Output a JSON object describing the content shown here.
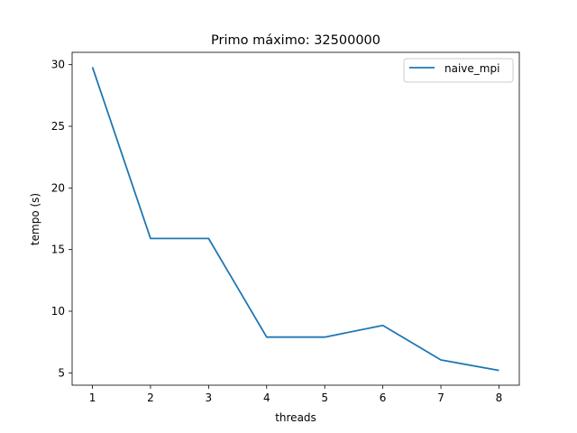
{
  "chart_data": {
    "type": "line",
    "title": "Primo máximo: 32500000",
    "xlabel": "threads",
    "ylabel": "tempo (s)",
    "x": [
      1,
      2,
      3,
      4,
      5,
      6,
      7,
      8
    ],
    "xticks": [
      "1",
      "2",
      "3",
      "4",
      "5",
      "6",
      "7",
      "8"
    ],
    "yticks": [
      "5",
      "10",
      "15",
      "20",
      "25",
      "30"
    ],
    "xlim": [
      0.65,
      8.35
    ],
    "ylim": [
      4.0,
      31.0
    ],
    "grid": false,
    "legend_position": "top-right",
    "series": [
      {
        "name": "naive_mpi",
        "color": "#1f77b4",
        "values": [
          29.8,
          15.9,
          15.9,
          7.9,
          7.9,
          8.85,
          6.05,
          5.2
        ]
      }
    ]
  }
}
